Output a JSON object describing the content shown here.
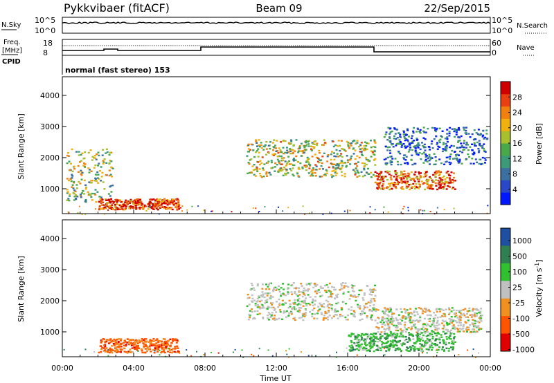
{
  "header": {
    "station": "Pykkvibaer (fitACF)",
    "beam": "Beam 09",
    "date": "22/Sep/2015"
  },
  "top_panels": {
    "nsky_label": "N.Sky",
    "nsky_ticks": [
      "10^5",
      "10^0"
    ],
    "nsearch_label": "N.Search",
    "nsearch_ticks": [
      "10^5",
      "10^0"
    ],
    "freq_label_top": "Freq.",
    "freq_label_unit": "[MHz]",
    "freq_ticks": [
      "18",
      "8"
    ],
    "nave_label": "Nave",
    "nave_ticks": [
      "60",
      "0"
    ],
    "cpid_label": "CPID",
    "cpid_text": "normal (fast stereo) 153"
  },
  "chart_data": [
    {
      "type": "heatmap",
      "title": "",
      "xlabel": "Time UT",
      "ylabel": "Slant Range [km]",
      "xticks": [
        "00:00",
        "04:00",
        "08:00",
        "12:00",
        "16:00",
        "20:00",
        "00:00"
      ],
      "xlim_hours": [
        0,
        24
      ],
      "ylim": [
        200,
        4600
      ],
      "yticks": [
        1000,
        2000,
        3000,
        4000
      ],
      "colorbar": {
        "label": "Power [dB]",
        "range": [
          0,
          32
        ],
        "ticks": [
          "4",
          "8",
          "12",
          "16",
          "20",
          "24",
          "28"
        ],
        "colors": [
          "#0018ff",
          "#2848c8",
          "#3c70a0",
          "#3c9a78",
          "#4aa84a",
          "#a8c030",
          "#f0b010",
          "#f08010",
          "#e84010",
          "#d00000"
        ]
      },
      "features": [
        {
          "t0": 0.2,
          "t1": 2.8,
          "r0": 600,
          "r1": 2300,
          "level": 0.5
        },
        {
          "t0": 2.0,
          "t1": 6.5,
          "r0": 350,
          "r1": 700,
          "level": 0.85
        },
        {
          "t0": 10.3,
          "t1": 17.5,
          "r0": 1400,
          "r1": 2600,
          "level": 0.55
        },
        {
          "t0": 17.5,
          "t1": 22.0,
          "r0": 1000,
          "r1": 1600,
          "level": 0.8
        },
        {
          "t0": 18.0,
          "t1": 23.8,
          "r0": 1800,
          "r1": 3000,
          "level": 0.2
        }
      ]
    },
    {
      "type": "heatmap",
      "title": "",
      "xlabel": "Time UT",
      "ylabel": "Slant Range [km]",
      "xticks": [
        "00:00",
        "04:00",
        "08:00",
        "12:00",
        "16:00",
        "20:00",
        "00:00"
      ],
      "xlim_hours": [
        0,
        24
      ],
      "ylim": [
        200,
        4600
      ],
      "yticks": [
        1000,
        2000,
        3000,
        4000
      ],
      "colorbar": {
        "label": "Velocity [m s^-1]",
        "range": [
          -1200,
          1200
        ],
        "ticks": [
          "1000",
          "500",
          "100",
          "25",
          "-25",
          "-100",
          "-500",
          "-1000"
        ],
        "colors": [
          "#e00000",
          "#ff5500",
          "#f09020",
          "#c0c0c0",
          "#30c030",
          "#2f7f50",
          "#1f4fa0"
        ]
      },
      "features": [
        {
          "t0": 2.0,
          "t1": 6.5,
          "r0": 350,
          "r1": 800,
          "level": -0.5
        },
        {
          "t0": 10.3,
          "t1": 17.5,
          "r0": 1400,
          "r1": 2600,
          "level": 0.0
        },
        {
          "t0": 17.5,
          "t1": 23.5,
          "r0": 1000,
          "r1": 1800,
          "level": 0.0
        },
        {
          "t0": 16.0,
          "t1": 22.0,
          "r0": 400,
          "r1": 1000,
          "level": 0.3
        }
      ]
    }
  ]
}
